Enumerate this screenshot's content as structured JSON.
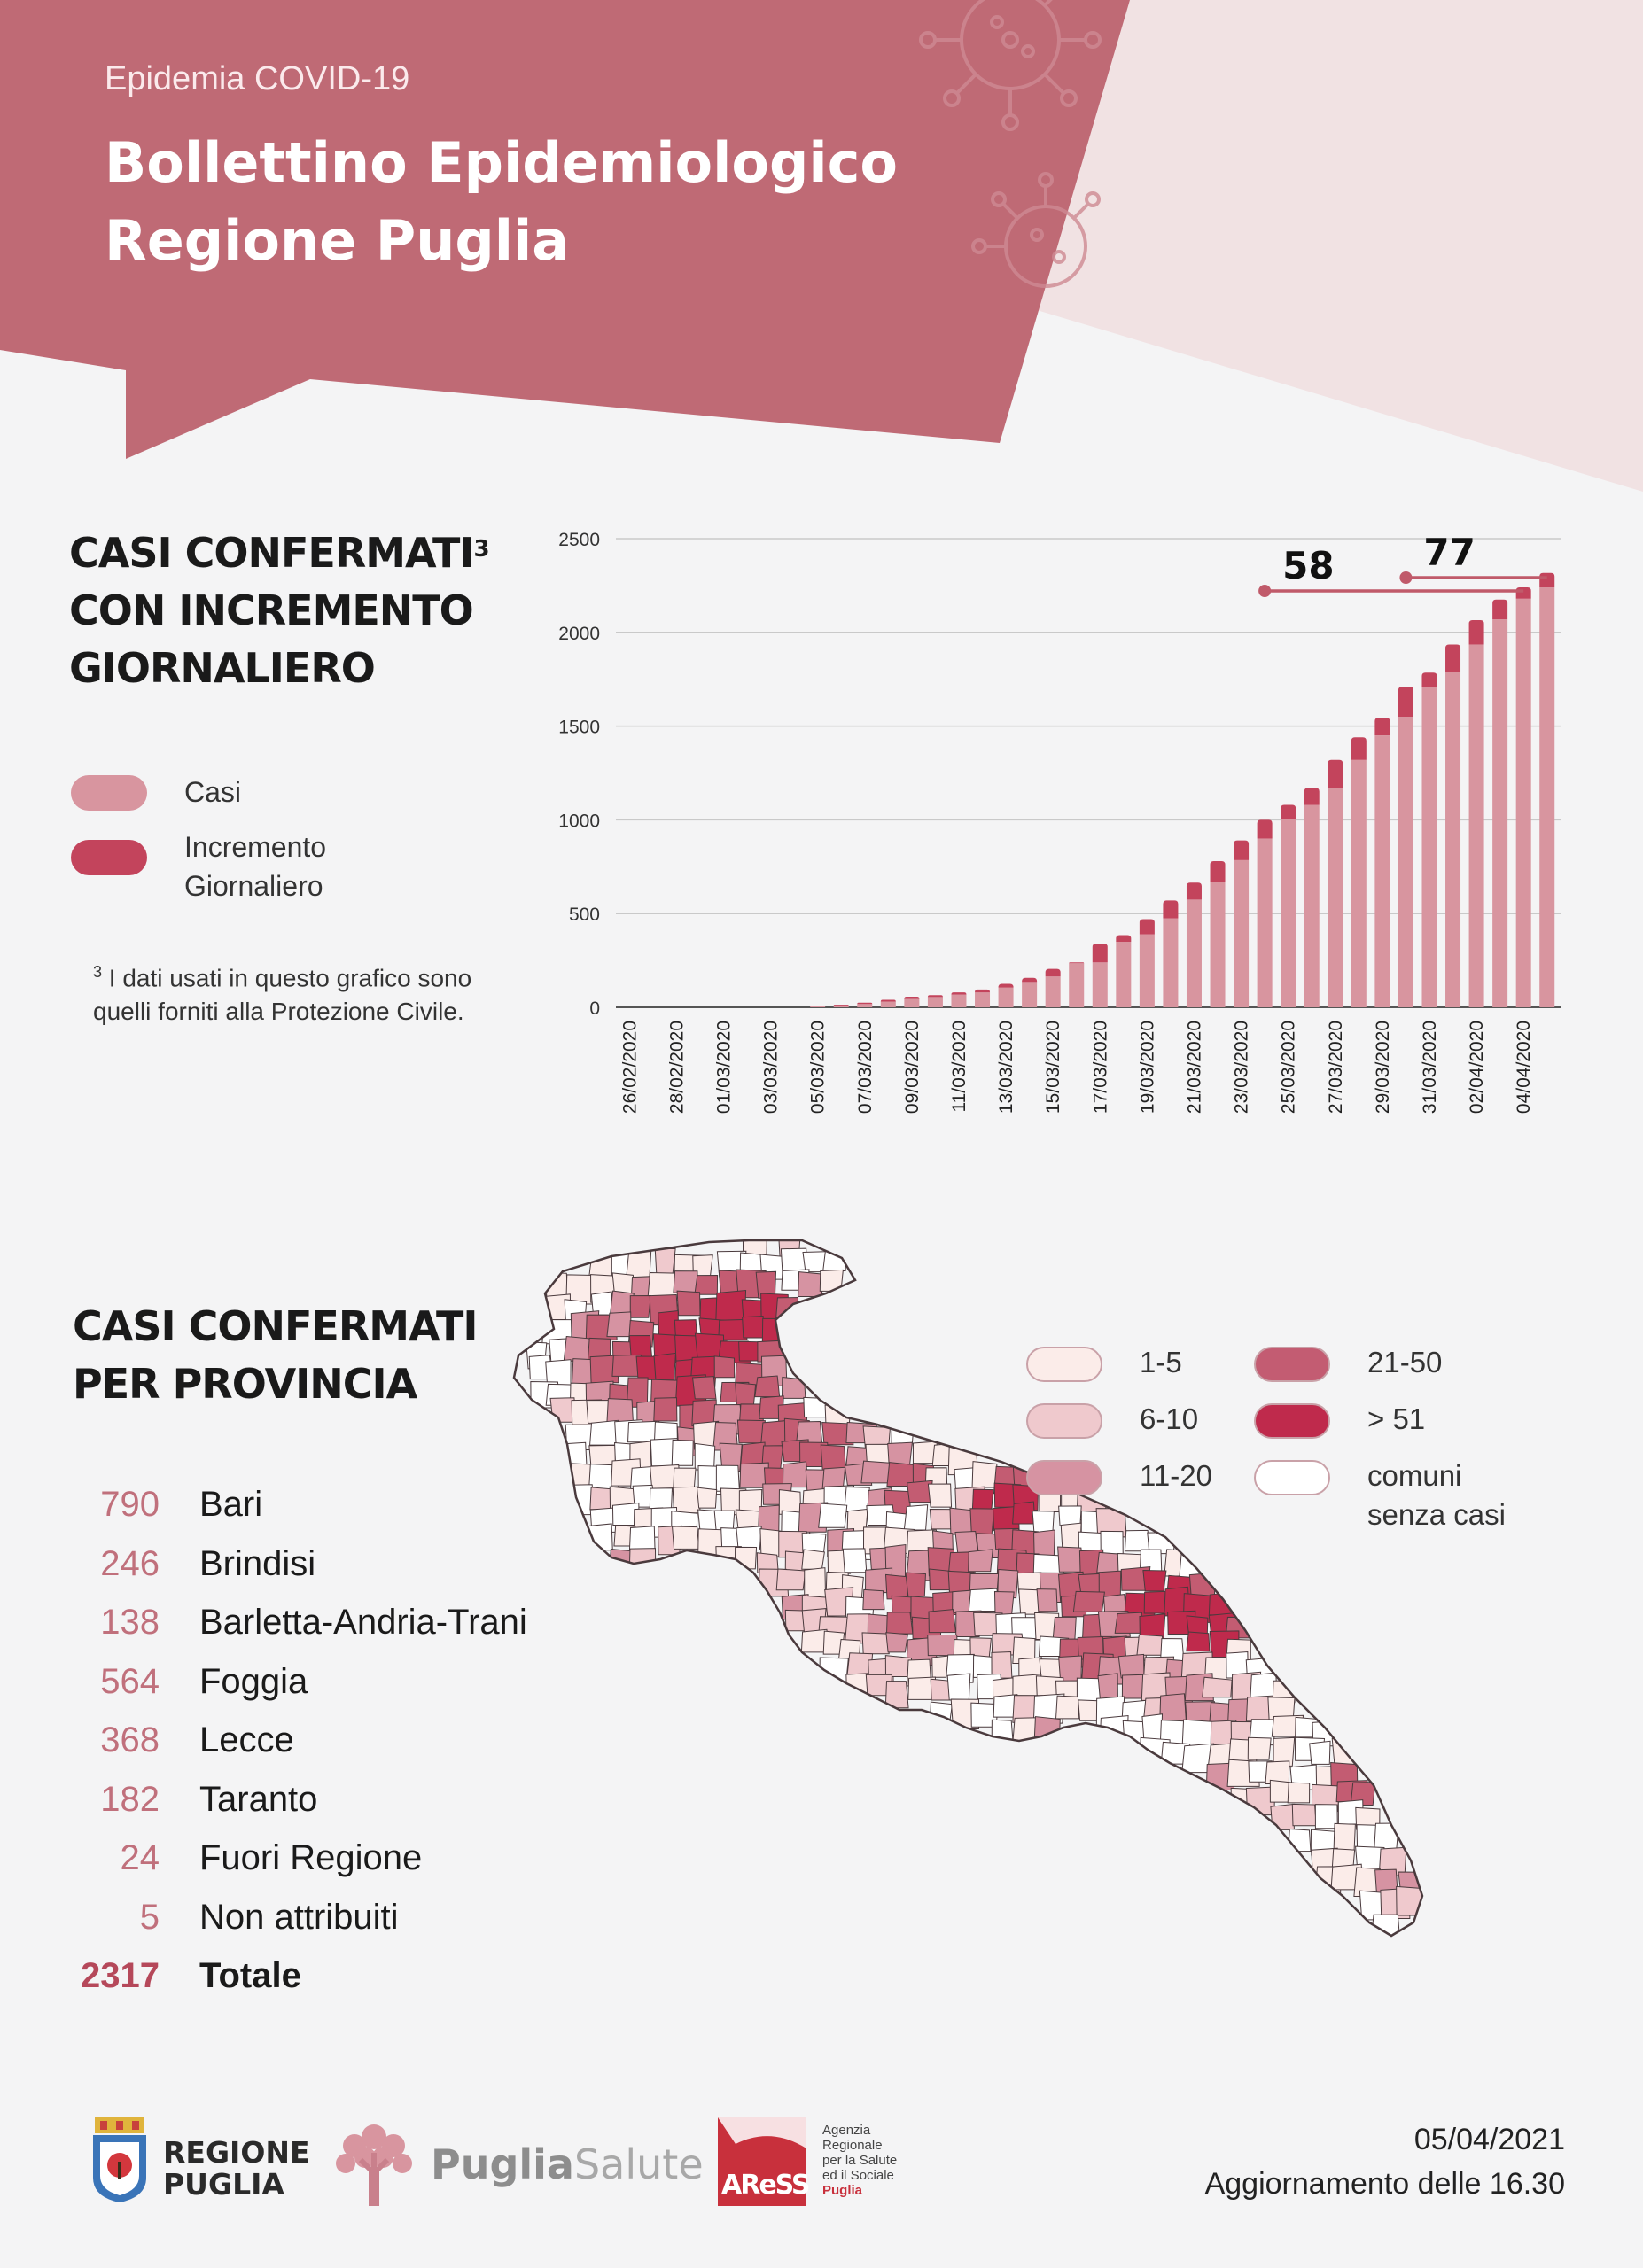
{
  "header": {
    "subtitle": "Epidemia COVID-19",
    "title_line1": "Bollettino Epidemiologico",
    "title_line2": "Regione Puglia"
  },
  "colors": {
    "header": "#bf6a75",
    "casi": "#d8959f",
    "incremento": "#c3445c",
    "c_1_5": "#fbece9",
    "c_6_10": "#efc9cd",
    "c_11_20": "#d693a2",
    "c_21_50": "#c35c72",
    "c_51": "#bf2a4c",
    "c_none": "#ffffff"
  },
  "chart_section": {
    "title_line1": "CASI CONFERMATI",
    "title_sup": "3",
    "title_line2": "CON INCREMENTO",
    "title_line3": "GIORNALIERO",
    "legend_casi": "Casi",
    "legend_incremento_line1": "Incremento",
    "legend_incremento_line2": "Giornaliero",
    "footnote_sup": "3",
    "footnote": "I dati usati in questo grafico sono quelli forniti alla Protezione Civile."
  },
  "chart_data": {
    "type": "bar",
    "stacked": true,
    "grid": true,
    "ylim": [
      0,
      2500
    ],
    "yticks": [
      0,
      500,
      1000,
      1500,
      2000,
      2500
    ],
    "x_tick_labels": [
      "26/02/2020",
      "28/02/2020",
      "01/03/2020",
      "03/03/2020",
      "05/03/2020",
      "07/03/2020",
      "09/03/2020",
      "11/03/2020",
      "13/03/2020",
      "15/03/2020",
      "17/03/2020",
      "19/03/2020",
      "21/03/2020",
      "23/03/2020",
      "25/03/2020",
      "27/03/2020",
      "29/03/2020",
      "31/03/2020",
      "02/04/2020",
      "04/04/2020"
    ],
    "categories": [
      "26/02/2020",
      "27/02/2020",
      "28/02/2020",
      "29/02/2020",
      "01/03/2020",
      "02/03/2020",
      "03/03/2020",
      "04/03/2020",
      "05/03/2020",
      "06/03/2020",
      "07/03/2020",
      "08/03/2020",
      "09/03/2020",
      "10/03/2020",
      "11/03/2020",
      "12/03/2020",
      "13/03/2020",
      "14/03/2020",
      "15/03/2020",
      "16/03/2020",
      "17/03/2020",
      "18/03/2020",
      "19/03/2020",
      "20/03/2020",
      "21/03/2020",
      "22/03/2020",
      "23/03/2020",
      "24/03/2020",
      "25/03/2020",
      "26/03/2020",
      "27/03/2020",
      "28/03/2020",
      "29/03/2020",
      "30/03/2020",
      "31/03/2020",
      "01/04/2020",
      "02/04/2020",
      "03/04/2020",
      "04/04/2020",
      "05/04/2020"
    ],
    "series": [
      {
        "name": "Casi",
        "values": [
          0,
          0,
          0,
          0,
          0,
          0,
          0,
          0,
          5,
          10,
          18,
          30,
          45,
          55,
          68,
          80,
          105,
          135,
          165,
          235,
          240,
          350,
          390,
          475,
          575,
          670,
          785,
          900,
          1005,
          1080,
          1170,
          1320,
          1450,
          1550,
          1710,
          1790,
          1935,
          2070,
          2180,
          2240
        ]
      },
      {
        "name": "Incremento Giornaliero",
        "values": [
          0,
          0,
          0,
          0,
          0,
          0,
          0,
          0,
          3,
          4,
          7,
          10,
          12,
          10,
          12,
          15,
          20,
          22,
          40,
          5,
          100,
          35,
          80,
          95,
          90,
          110,
          105,
          100,
          75,
          90,
          150,
          120,
          95,
          160,
          75,
          145,
          130,
          105,
          60,
          77
        ]
      }
    ],
    "annotations": [
      {
        "text": "58",
        "from": "24/03/2020",
        "to": "04/04/2020"
      },
      {
        "text": "77",
        "from": "30/03/2020",
        "to": "05/04/2020"
      }
    ]
  },
  "map_section": {
    "title_line1": "CASI CONFERMATI",
    "title_line2": "PER PROVINCIA",
    "legend": [
      {
        "label": "1-5",
        "color": "#fbece9"
      },
      {
        "label": "6-10",
        "color": "#efc9cd"
      },
      {
        "label": "11-20",
        "color": "#d693a2"
      },
      {
        "label": "21-50",
        "color": "#c35c72"
      },
      {
        "label": "> 51",
        "color": "#bf2a4c"
      },
      {
        "label_line1": "comuni",
        "label_line2": "senza casi",
        "color": "#ffffff"
      }
    ],
    "provinces": [
      {
        "value": "790",
        "name": "Bari"
      },
      {
        "value": "246",
        "name": "Brindisi"
      },
      {
        "value": "138",
        "name": "Barletta-Andria-Trani"
      },
      {
        "value": "564",
        "name": "Foggia"
      },
      {
        "value": "368",
        "name": "Lecce"
      },
      {
        "value": "182",
        "name": "Taranto"
      },
      {
        "value": "24",
        "name": "Fuori Regione"
      },
      {
        "value": "5",
        "name": "Non attribuiti"
      },
      {
        "value": "2317",
        "name": "Totale"
      }
    ]
  },
  "footer": {
    "regione_line1": "REGIONE",
    "regione_line2": "PUGLIA",
    "puglia_salute_a": "Puglia",
    "puglia_salute_b": "Salute",
    "aress_logo": "AReSS",
    "aress_line1": "Agenzia",
    "aress_line2": "Regionale",
    "aress_line3": "per la Salute",
    "aress_line4": "ed il Sociale",
    "aress_line5": "Puglia",
    "date": "05/04/2021",
    "update": "Aggiornamento delle 16.30"
  }
}
